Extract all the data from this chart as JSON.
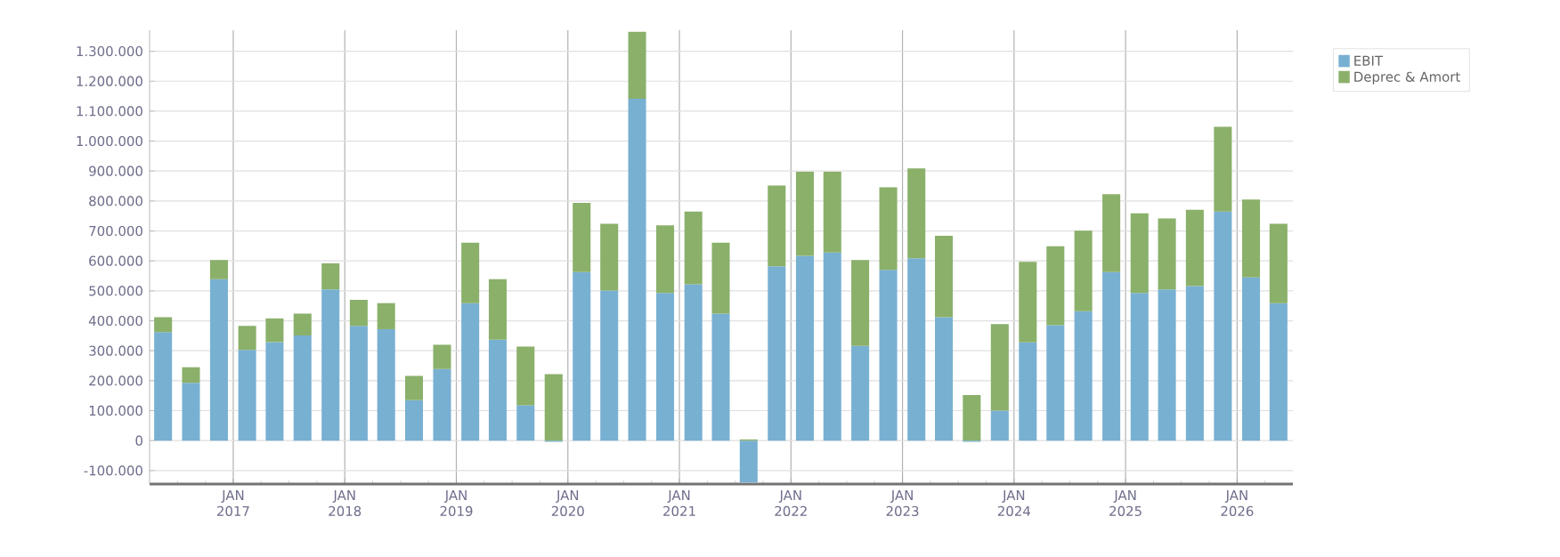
{
  "chart_data": {
    "type": "bar",
    "stacked": true,
    "grid": true,
    "legend": "top right",
    "x": [
      "2016-05-15",
      "2016-08-15",
      "2016-11-15",
      "2017-02-15",
      "2017-05-15",
      "2017-08-15",
      "2017-11-15",
      "2018-02-15",
      "2018-05-15",
      "2018-08-15",
      "2018-11-15",
      "2019-02-15",
      "2019-05-15",
      "2019-08-15",
      "2019-11-15",
      "2020-02-15",
      "2020-05-15",
      "2020-08-15",
      "2020-11-15",
      "2021-02-15",
      "2021-05-15",
      "2021-08-15",
      "2021-11-15",
      "2022-02-15",
      "2022-05-15",
      "2022-08-15",
      "2022-11-15",
      "2023-02-15",
      "2023-05-15",
      "2023-08-15",
      "2023-11-15",
      "2024-02-15",
      "2024-05-15",
      "2024-08-15",
      "2024-11-15",
      "2025-02-15",
      "2025-05-15",
      "2025-08-15",
      "2025-11-15",
      "2026-02-15",
      "2026-05-15"
    ],
    "series": [
      {
        "name": "EBIT",
        "color": "#78b0d2",
        "values": [
          362000,
          193000,
          539000,
          303000,
          329000,
          351000,
          505000,
          383000,
          372000,
          135000,
          239000,
          459000,
          337000,
          118000,
          -4000,
          563000,
          501000,
          1141000,
          493000,
          522000,
          424000,
          -140000,
          582000,
          617000,
          628000,
          316000,
          570000,
          609000,
          412000,
          -4000,
          100000,
          328000,
          385000,
          432000,
          563000,
          493000,
          505000,
          516000,
          765000,
          545000,
          459000
        ]
      },
      {
        "name": "Deprec & Amort",
        "color": "#8ab06a",
        "values": [
          50000,
          52000,
          64000,
          80000,
          79000,
          73000,
          87000,
          87000,
          87000,
          81000,
          81000,
          202000,
          202000,
          196000,
          222000,
          231000,
          223000,
          224000,
          226000,
          243000,
          237000,
          4000,
          270000,
          281000,
          270000,
          287000,
          276000,
          300000,
          272000,
          152000,
          289000,
          269000,
          264000,
          269000,
          260000,
          266000,
          237000,
          255000,
          283000,
          260000,
          265000
        ]
      }
    ],
    "xlim": [
      "2016-04-01",
      "2026-07-01"
    ],
    "xticks": [
      {
        "value": "2016-07-01",
        "label": null
      },
      {
        "value": "2016-10-01",
        "label": null
      },
      {
        "value": "2017-01-01",
        "label": "JAN 2017"
      },
      {
        "value": "2017-04-01",
        "label": null
      },
      {
        "value": "2017-07-01",
        "label": null
      },
      {
        "value": "2017-10-01",
        "label": null
      },
      {
        "value": "2018-01-01",
        "label": "JAN 2018"
      },
      {
        "value": "2018-04-01",
        "label": null
      },
      {
        "value": "2018-07-01",
        "label": null
      },
      {
        "value": "2018-10-01",
        "label": null
      },
      {
        "value": "2019-01-01",
        "label": "JAN 2019"
      },
      {
        "value": "2019-04-01",
        "label": null
      },
      {
        "value": "2019-07-01",
        "label": null
      },
      {
        "value": "2019-10-01",
        "label": null
      },
      {
        "value": "2020-01-01",
        "label": "JAN 2020"
      },
      {
        "value": "2020-04-01",
        "label": null
      },
      {
        "value": "2020-07-01",
        "label": null
      },
      {
        "value": "2020-10-01",
        "label": null
      },
      {
        "value": "2021-01-01",
        "label": "JAN 2021"
      },
      {
        "value": "2021-04-01",
        "label": null
      },
      {
        "value": "2021-07-01",
        "label": null
      },
      {
        "value": "2021-10-01",
        "label": null
      },
      {
        "value": "2022-01-01",
        "label": "JAN 2022"
      },
      {
        "value": "2022-04-01",
        "label": null
      },
      {
        "value": "2022-07-01",
        "label": null
      },
      {
        "value": "2022-10-01",
        "label": null
      },
      {
        "value": "2023-01-01",
        "label": "JAN 2023"
      },
      {
        "value": "2023-04-01",
        "label": null
      },
      {
        "value": "2023-07-01",
        "label": null
      },
      {
        "value": "2023-10-01",
        "label": null
      },
      {
        "value": "2024-01-01",
        "label": "JAN 2024"
      },
      {
        "value": "2024-04-01",
        "label": null
      },
      {
        "value": "2024-07-01",
        "label": null
      },
      {
        "value": "2024-10-01",
        "label": null
      },
      {
        "value": "2025-01-01",
        "label": "JAN 2025"
      },
      {
        "value": "2025-04-01",
        "label": null
      },
      {
        "value": "2025-07-01",
        "label": null
      },
      {
        "value": "2025-10-01",
        "label": null
      },
      {
        "value": "2026-01-01",
        "label": "JAN 2026"
      },
      {
        "value": "2026-04-01",
        "label": null
      }
    ],
    "ylim": [
      -145000,
      1370000
    ],
    "yticks": [
      {
        "value": -100000,
        "label": "-100.000"
      },
      {
        "value": 0,
        "label": "0"
      },
      {
        "value": 100000,
        "label": "100.000"
      },
      {
        "value": 200000,
        "label": "200.000"
      },
      {
        "value": 300000,
        "label": "300.000"
      },
      {
        "value": 400000,
        "label": "400.000"
      },
      {
        "value": 500000,
        "label": "500.000"
      },
      {
        "value": 600000,
        "label": "600.000"
      },
      {
        "value": 700000,
        "label": "700.000"
      },
      {
        "value": 800000,
        "label": "800.000"
      },
      {
        "value": 900000,
        "label": "900.000"
      },
      {
        "value": 1000000,
        "label": "1.000.000"
      },
      {
        "value": 1100000,
        "label": "1.100.000"
      },
      {
        "value": 1200000,
        "label": "1.200.000"
      },
      {
        "value": 1300000,
        "label": "1.300.000"
      }
    ]
  }
}
